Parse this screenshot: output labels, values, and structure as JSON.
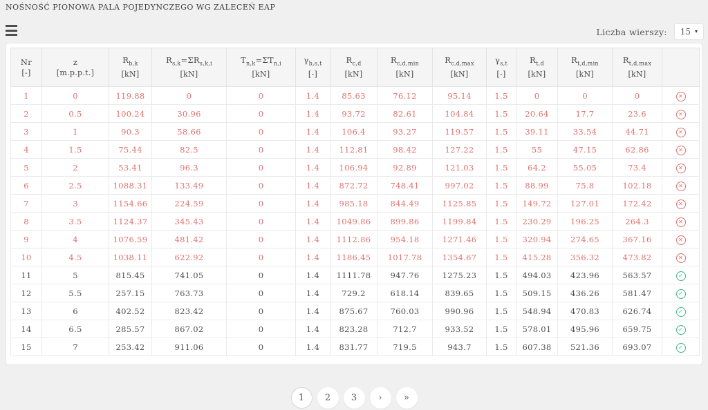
{
  "title": "NOŚNOŚĆ PIONOWA PALA POJEDYNCZEGO WG ZALECEŃ EAP",
  "rows_selector": {
    "label": "Liczba wierszy:",
    "value": "15",
    "arrow": "▾"
  },
  "colors": {
    "fail": "#e0716d",
    "pass": "#3cba85",
    "accent_text": "#4a4a4a"
  },
  "table": {
    "status_icons": {
      "fail": "✕",
      "pass": "✓"
    },
    "columns": [
      {
        "id": "nr",
        "parts": [
          [
            "Nr",
            0
          ]
        ],
        "unit": "[-]"
      },
      {
        "id": "z",
        "parts": [
          [
            "z",
            0
          ]
        ],
        "unit": "[m.p.p.t.]"
      },
      {
        "id": "rbk",
        "parts": [
          [
            "R",
            0
          ],
          [
            "b,k",
            1
          ]
        ],
        "unit": "[kN]"
      },
      {
        "id": "rsk",
        "parts": [
          [
            "R",
            0
          ],
          [
            "s,k",
            1
          ],
          [
            "=ΣR",
            0
          ],
          [
            "s,k,i",
            1
          ]
        ],
        "unit": "[kN]"
      },
      {
        "id": "tnk",
        "parts": [
          [
            "T",
            0
          ],
          [
            "n,k",
            1
          ],
          [
            "=ΣT",
            0
          ],
          [
            "n,i",
            1
          ]
        ],
        "unit": "[kN]"
      },
      {
        "id": "gbst",
        "parts": [
          [
            "γ",
            0
          ],
          [
            "b,s,t",
            1
          ]
        ],
        "unit": "[-]"
      },
      {
        "id": "rcd",
        "parts": [
          [
            "R",
            0
          ],
          [
            "c,d",
            1
          ]
        ],
        "unit": "[kN]"
      },
      {
        "id": "rcdmin",
        "parts": [
          [
            "R",
            0
          ],
          [
            "c,d,min",
            1
          ]
        ],
        "unit": "[kN]"
      },
      {
        "id": "rcdmax",
        "parts": [
          [
            "R",
            0
          ],
          [
            "c,d,max",
            1
          ]
        ],
        "unit": "[kN]"
      },
      {
        "id": "gst",
        "parts": [
          [
            "γ",
            0
          ],
          [
            "s,t",
            1
          ]
        ],
        "unit": "[-]"
      },
      {
        "id": "rtd",
        "parts": [
          [
            "R",
            0
          ],
          [
            "t,d",
            1
          ]
        ],
        "unit": "[kN]"
      },
      {
        "id": "rtdmin",
        "parts": [
          [
            "R",
            0
          ],
          [
            "t,d,min",
            1
          ]
        ],
        "unit": "[kN]"
      },
      {
        "id": "rtdmax",
        "parts": [
          [
            "R",
            0
          ],
          [
            "t,d,max",
            1
          ]
        ],
        "unit": "[kN]"
      },
      {
        "id": "status",
        "parts": [],
        "unit": ""
      }
    ],
    "rows": [
      {
        "status": "fail",
        "values": [
          "1",
          "0",
          "119.88",
          "0",
          "0",
          "1.4",
          "85.63",
          "76.12",
          "95.14",
          "1.5",
          "0",
          "0",
          "0"
        ]
      },
      {
        "status": "fail",
        "values": [
          "2",
          "0.5",
          "100.24",
          "30.96",
          "0",
          "1.4",
          "93.72",
          "82.61",
          "104.84",
          "1.5",
          "20.64",
          "17.7",
          "23.6"
        ]
      },
      {
        "status": "fail",
        "values": [
          "3",
          "1",
          "90.3",
          "58.66",
          "0",
          "1.4",
          "106.4",
          "93.27",
          "119.57",
          "1.5",
          "39.11",
          "33.54",
          "44.71"
        ]
      },
      {
        "status": "fail",
        "values": [
          "4",
          "1.5",
          "75.44",
          "82.5",
          "0",
          "1.4",
          "112.81",
          "98.42",
          "127.22",
          "1.5",
          "55",
          "47.15",
          "62.86"
        ]
      },
      {
        "status": "fail",
        "values": [
          "5",
          "2",
          "53.41",
          "96.3",
          "0",
          "1.4",
          "106.94",
          "92.89",
          "121.03",
          "1.5",
          "64.2",
          "55.05",
          "73.4"
        ]
      },
      {
        "status": "fail",
        "values": [
          "6",
          "2.5",
          "1088.31",
          "133.49",
          "0",
          "1.4",
          "872.72",
          "748.41",
          "997.02",
          "1.5",
          "88.99",
          "75.8",
          "102.18"
        ]
      },
      {
        "status": "fail",
        "values": [
          "7",
          "3",
          "1154.66",
          "224.59",
          "0",
          "1.4",
          "985.18",
          "844.49",
          "1125.85",
          "1.5",
          "149.72",
          "127.01",
          "172.42"
        ]
      },
      {
        "status": "fail",
        "values": [
          "8",
          "3.5",
          "1124.37",
          "345.43",
          "0",
          "1.4",
          "1049.86",
          "899.86",
          "1199.84",
          "1.5",
          "230.29",
          "196.25",
          "264.3"
        ]
      },
      {
        "status": "fail",
        "values": [
          "9",
          "4",
          "1076.59",
          "481.42",
          "0",
          "1.4",
          "1112.86",
          "954.18",
          "1271.46",
          "1.5",
          "320.94",
          "274.65",
          "367.16"
        ]
      },
      {
        "status": "fail",
        "values": [
          "10",
          "4.5",
          "1038.11",
          "622.92",
          "0",
          "1.4",
          "1186.45",
          "1017.78",
          "1354.67",
          "1.5",
          "415.28",
          "356.32",
          "473.82"
        ]
      },
      {
        "status": "pass",
        "values": [
          "11",
          "5",
          "815.45",
          "741.05",
          "0",
          "1.4",
          "1111.78",
          "947.76",
          "1275.23",
          "1.5",
          "494.03",
          "423.96",
          "563.57"
        ]
      },
      {
        "status": "pass",
        "values": [
          "12",
          "5.5",
          "257.15",
          "763.73",
          "0",
          "1.4",
          "729.2",
          "618.14",
          "839.65",
          "1.5",
          "509.15",
          "436.26",
          "581.47"
        ]
      },
      {
        "status": "pass",
        "values": [
          "13",
          "6",
          "402.52",
          "823.42",
          "0",
          "1.4",
          "875.67",
          "760.03",
          "990.96",
          "1.5",
          "548.94",
          "470.83",
          "626.74"
        ]
      },
      {
        "status": "pass",
        "values": [
          "14",
          "6.5",
          "285.57",
          "867.02",
          "0",
          "1.4",
          "823.28",
          "712.7",
          "933.52",
          "1.5",
          "578.01",
          "495.96",
          "659.75"
        ]
      },
      {
        "status": "pass",
        "values": [
          "15",
          "7",
          "253.42",
          "911.06",
          "0",
          "1.4",
          "831.77",
          "719.5",
          "943.7",
          "1.5",
          "607.38",
          "521.36",
          "693.07"
        ]
      }
    ]
  },
  "pagination": {
    "items": [
      {
        "label": "1",
        "name": "page-1-button",
        "active": true
      },
      {
        "label": "2",
        "name": "page-2-button",
        "active": false
      },
      {
        "label": "3",
        "name": "page-3-button",
        "active": false
      },
      {
        "label": "›",
        "name": "next-page-button",
        "active": false
      },
      {
        "label": "»",
        "name": "last-page-button",
        "active": false
      }
    ]
  }
}
